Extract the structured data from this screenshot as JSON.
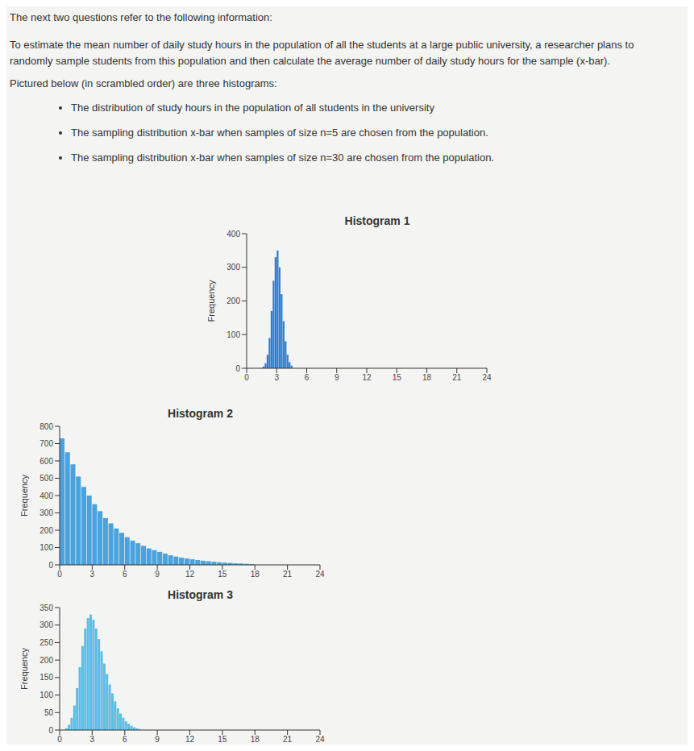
{
  "document": {
    "intro": "The next two questions refer to the following information:",
    "paragraph": "To estimate the mean number of daily study hours in the population of all the students at a large public university, a researcher plans to randomly sample students from this population and then calculate the average number of daily study hours for the sample (x-bar).",
    "pictured": "Pictured below (in scrambled order) are three histograms:",
    "bullets": [
      "The distribution of study hours in the population of all students in the university",
      "The sampling distribution x-bar when samples of size n=5 are chosen from the population.",
      "The sampling distribution x-bar when samples of size n=30 are chosen from the population."
    ]
  },
  "chart_data": [
    {
      "type": "histogram",
      "title": "Histogram 1",
      "ylabel": "Frequency",
      "color": "#2b7fd6",
      "bins": [
        1.6,
        1.8,
        2.0,
        2.2,
        2.4,
        2.6,
        2.8,
        3.0,
        3.2,
        3.4,
        3.6,
        3.8,
        4.0,
        4.2,
        4.4,
        4.6
      ],
      "counts": [
        5,
        15,
        40,
        90,
        170,
        260,
        330,
        350,
        300,
        220,
        140,
        80,
        40,
        18,
        8
      ],
      "xlim": [
        0,
        24
      ],
      "xticks": [
        0,
        3,
        6,
        9,
        12,
        15,
        18,
        21,
        24
      ],
      "ylim": [
        0,
        400
      ],
      "yticks": [
        0,
        100,
        200,
        300,
        400
      ]
    },
    {
      "type": "histogram",
      "title": "Histogram 2",
      "ylabel": "Frequency",
      "color": "#4aa3df",
      "bins": [
        0,
        0.5,
        1,
        1.5,
        2,
        2.5,
        3,
        3.5,
        4,
        4.5,
        5,
        5.5,
        6,
        6.5,
        7,
        7.5,
        8,
        8.5,
        9,
        9.5,
        10,
        10.5,
        11,
        11.5,
        12,
        12.5,
        13,
        13.5,
        14,
        14.5,
        15,
        15.5,
        16,
        16.5,
        17,
        17.5,
        18
      ],
      "counts": [
        730,
        650,
        580,
        510,
        450,
        400,
        350,
        310,
        270,
        240,
        210,
        185,
        160,
        140,
        125,
        110,
        95,
        85,
        75,
        65,
        55,
        48,
        42,
        37,
        32,
        28,
        24,
        21,
        18,
        15,
        13,
        11,
        9,
        8,
        6,
        5
      ],
      "xlim": [
        0,
        24
      ],
      "xticks": [
        0,
        3,
        6,
        9,
        12,
        15,
        18,
        21,
        24
      ],
      "ylim": [
        0,
        800
      ],
      "yticks": [
        0,
        100,
        200,
        300,
        400,
        500,
        600,
        700,
        800
      ]
    },
    {
      "type": "histogram",
      "title": "Histogram 3",
      "ylabel": "Frequency",
      "color": "#5bbde4",
      "bins": [
        0.5,
        0.75,
        1,
        1.25,
        1.5,
        1.75,
        2,
        2.25,
        2.5,
        2.75,
        3,
        3.25,
        3.5,
        3.75,
        4,
        4.25,
        4.5,
        4.75,
        5,
        5.25,
        5.5,
        5.75,
        6,
        6.25,
        6.5,
        6.75,
        7,
        7.25,
        7.5
      ],
      "counts": [
        5,
        15,
        35,
        70,
        120,
        180,
        240,
        290,
        320,
        330,
        315,
        290,
        260,
        225,
        190,
        160,
        130,
        105,
        82,
        62,
        47,
        35,
        25,
        18,
        12,
        8,
        5,
        3
      ],
      "xlim": [
        0,
        24
      ],
      "xticks": [
        0,
        3,
        6,
        9,
        12,
        15,
        18,
        21,
        24
      ],
      "ylim": [
        0,
        350
      ],
      "yticks": [
        0,
        50,
        100,
        150,
        200,
        250,
        300,
        350
      ]
    }
  ]
}
